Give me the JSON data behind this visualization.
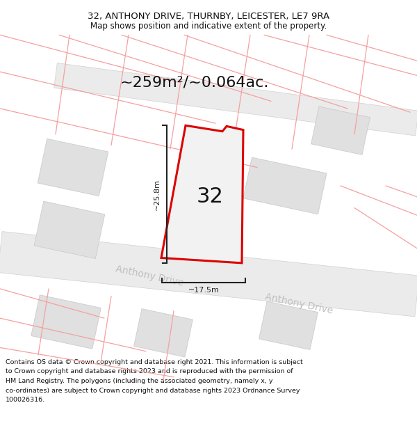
{
  "title_line1": "32, ANTHONY DRIVE, THURNBY, LEICESTER, LE7 9RA",
  "title_line2": "Map shows position and indicative extent of the property.",
  "area_text": "~259m²/~0.064ac.",
  "number_label": "32",
  "dim_width": "~17.5m",
  "dim_height": "~25.8m",
  "street_label_lower": "Anthony Drive",
  "street_label_upper": "Anthony Drive",
  "footer_text": "Contains OS data © Crown copyright and database right 2021. This information is subject to Crown copyright and database rights 2023 and is reproduced with the permission of HM Land Registry. The polygons (including the associated geometry, namely x, y co-ordinates) are subject to Crown copyright and database rights 2023 Ordnance Survey 100026316.",
  "bg_color": "#ffffff",
  "map_bg": "#ffffff",
  "plot_fill": "#f0f0f0",
  "plot_outline": "#dd0000",
  "dim_line_color": "#222222",
  "faint_line_color": "#f5a0a0",
  "gray_fill": "#e0e0e0",
  "gray_edge": "#cccccc",
  "street_text_color": "#c0c0c0",
  "road_fill": "#ebebeb",
  "road_edge": "#d0d0d0",
  "number_color": "#111111",
  "title_color": "#111111",
  "footer_color": "#111111",
  "title_fontsize": 9.5,
  "subtitle_fontsize": 8.5,
  "area_fontsize": 16,
  "number_fontsize": 22,
  "street_fontsize": 10,
  "footer_fontsize": 6.8,
  "dim_fontsize": 8
}
